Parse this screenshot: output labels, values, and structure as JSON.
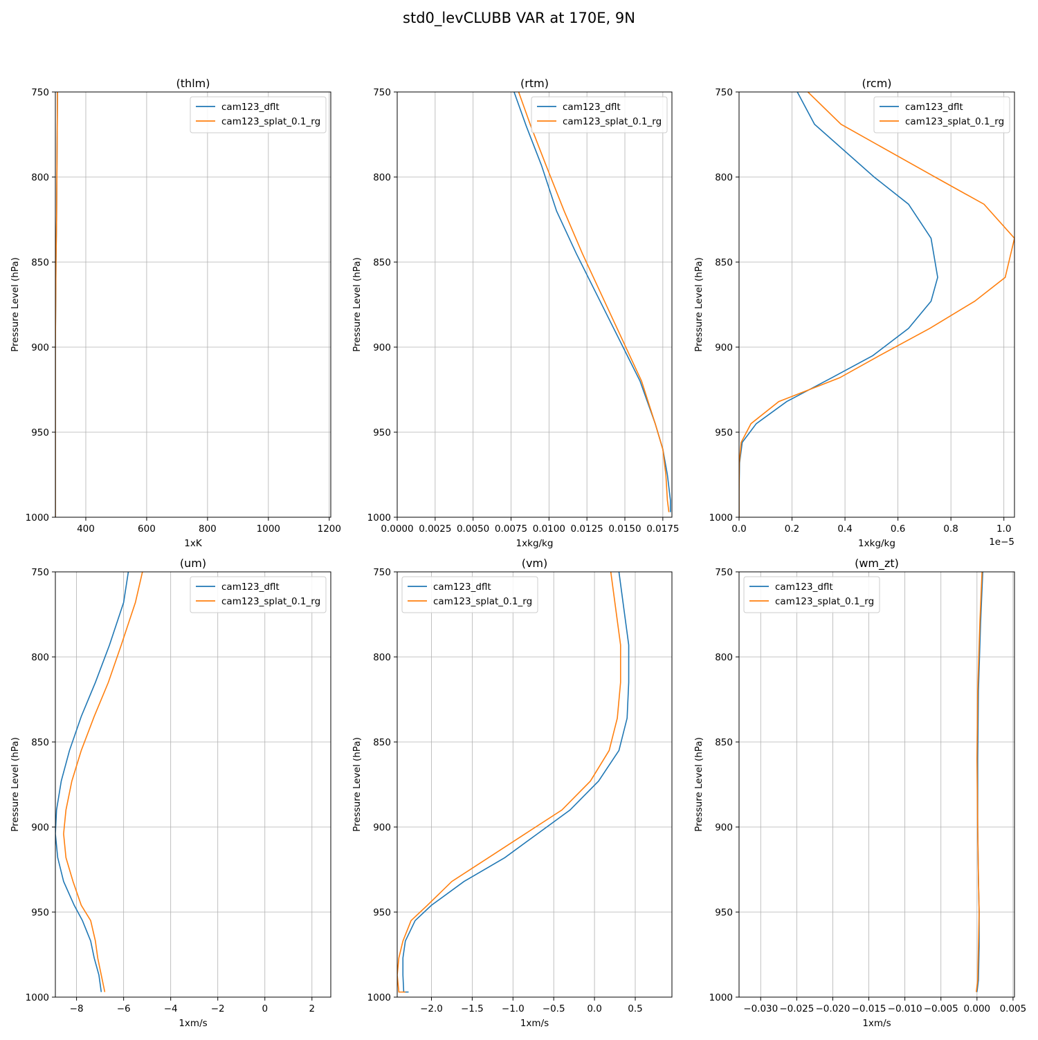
{
  "figure": {
    "suptitle": "std0_levCLUBB VAR at 170E, 9N"
  },
  "colors": {
    "series_0": "#1f77b4",
    "series_1": "#ff7f0e",
    "grid": "#b0b0b0"
  },
  "chart_data": [
    {
      "type": "line",
      "title": "(thlm)",
      "xlabel": "1xK",
      "ylabel": "Pressure Level (hPa)",
      "xlim": [
        300,
        1205
      ],
      "ylim": [
        1000,
        750
      ],
      "y_inverted": true,
      "xticks": [
        400,
        600,
        800,
        1000,
        1200
      ],
      "xtick_labels": [
        "400",
        "600",
        "800",
        "1000",
        "1200"
      ],
      "yticks": [
        750,
        800,
        850,
        900,
        950,
        1000
      ],
      "ytick_labels": [
        "750",
        "800",
        "850",
        "900",
        "950",
        "1000"
      ],
      "offset_text": "",
      "grid": true,
      "legend": "upper right",
      "series": [
        {
          "name": "cam123_dflt",
          "x": [
            307,
            306,
            305,
            304,
            302,
            301,
            300,
            300
          ],
          "y": [
            750,
            775,
            800,
            825,
            850,
            875,
            900,
            1000
          ]
        },
        {
          "name": "cam123_splat_0.1_rg",
          "x": [
            307,
            306,
            305,
            304,
            302,
            301,
            300,
            300
          ],
          "y": [
            750,
            775,
            800,
            825,
            850,
            875,
            900,
            1000
          ]
        }
      ]
    },
    {
      "type": "line",
      "title": "(rtm)",
      "xlabel": "1xkg/kg",
      "ylabel": "Pressure Level (hPa)",
      "xlim": [
        0,
        0.0181
      ],
      "ylim": [
        1000,
        750
      ],
      "y_inverted": true,
      "xticks": [
        0,
        0.0025,
        0.005,
        0.0075,
        0.01,
        0.0125,
        0.015,
        0.0175
      ],
      "xtick_labels": [
        "0.0000",
        "0.0025",
        "0.0050",
        "0.0075",
        "0.0100",
        "0.0125",
        "0.0150",
        "0.0175"
      ],
      "yticks": [
        750,
        800,
        850,
        900,
        950,
        1000
      ],
      "ytick_labels": [
        "750",
        "800",
        "850",
        "900",
        "950",
        "1000"
      ],
      "offset_text": "",
      "grid": true,
      "legend": "upper right",
      "series": [
        {
          "name": "cam123_dflt",
          "x": [
            0.0077,
            0.0085,
            0.0095,
            0.0105,
            0.0118,
            0.0132,
            0.0146,
            0.016,
            0.017,
            0.0175,
            0.0178,
            0.018,
            0.018
          ],
          "y": [
            750,
            770,
            793,
            820,
            845,
            870,
            895,
            920,
            945,
            960,
            975,
            990,
            997
          ]
        },
        {
          "name": "cam123_splat_0.1_rg",
          "x": [
            0.008,
            0.0088,
            0.0098,
            0.011,
            0.0122,
            0.0135,
            0.0148,
            0.0161,
            0.017,
            0.0175,
            0.0177,
            0.0178,
            0.0179
          ],
          "y": [
            750,
            770,
            793,
            820,
            845,
            870,
            895,
            920,
            945,
            960,
            975,
            990,
            997
          ]
        }
      ]
    },
    {
      "type": "line",
      "title": "(rcm)",
      "xlabel": "1xkg/kg",
      "ylabel": "Pressure Level (hPa)",
      "xlim": [
        0,
        1.04e-05
      ],
      "ylim": [
        1000,
        750
      ],
      "y_inverted": true,
      "xticks": [
        0,
        2e-06,
        4e-06,
        6e-06,
        8e-06,
        1e-05
      ],
      "xtick_labels": [
        "0.0",
        "0.2",
        "0.4",
        "0.6",
        "0.8",
        "1.0"
      ],
      "yticks": [
        750,
        800,
        850,
        900,
        950,
        1000
      ],
      "ytick_labels": [
        "750",
        "800",
        "850",
        "900",
        "950",
        "1000"
      ],
      "offset_text": "1e−5",
      "grid": true,
      "legend": "upper right",
      "series": [
        {
          "name": "cam123_dflt",
          "x": [
            2.2e-06,
            2.85e-06,
            5.1e-06,
            6.4e-06,
            7.25e-06,
            7.5e-06,
            7.25e-06,
            6.4e-06,
            5.05e-06,
            3.5e-06,
            1.8e-06,
            6.5e-07,
            1.2e-07,
            2e-08,
            0,
            0
          ],
          "y": [
            750,
            769,
            800,
            816,
            836,
            859,
            873,
            889,
            905,
            918,
            932,
            945,
            956,
            968,
            985,
            1000
          ]
        },
        {
          "name": "cam123_splat_0.1_rg",
          "x": [
            2.6e-06,
            3.85e-06,
            7.4e-06,
            9.25e-06,
            1.04e-05,
            1.005e-05,
            8.9e-06,
            7.2e-06,
            5.3e-06,
            3.8e-06,
            1.5e-06,
            4.5e-07,
            8e-08,
            1e-08,
            0,
            0
          ],
          "y": [
            750,
            769,
            800,
            816,
            836,
            859,
            873,
            889,
            905,
            918,
            932,
            945,
            956,
            968,
            985,
            1000
          ]
        }
      ]
    },
    {
      "type": "line",
      "title": "(um)",
      "xlabel": "1xm/s",
      "ylabel": "Pressure Level (hPa)",
      "xlim": [
        -8.9,
        2.8
      ],
      "ylim": [
        1000,
        750
      ],
      "y_inverted": true,
      "xticks": [
        -8,
        -6,
        -4,
        -2,
        0,
        2
      ],
      "xtick_labels": [
        "−8",
        "−6",
        "−4",
        "−2",
        "0",
        "2"
      ],
      "yticks": [
        750,
        800,
        850,
        900,
        950,
        1000
      ],
      "ytick_labels": [
        "750",
        "800",
        "850",
        "900",
        "950",
        "1000"
      ],
      "offset_text": "",
      "grid": true,
      "legend": "upper right",
      "series": [
        {
          "name": "cam123_dflt",
          "x": [
            -5.8,
            -6.0,
            -6.6,
            -7.2,
            -7.8,
            -8.3,
            -8.65,
            -8.85,
            -8.9,
            -8.8,
            -8.55,
            -8.1,
            -7.75,
            -7.4,
            -7.25,
            -7.05,
            -6.95
          ],
          "y": [
            750,
            768,
            793,
            815,
            835,
            855,
            873,
            890,
            904,
            918,
            932,
            946,
            955,
            967,
            977,
            987,
            997
          ]
        },
        {
          "name": "cam123_splat_0.1_rg",
          "x": [
            -5.2,
            -5.5,
            -6.1,
            -6.65,
            -7.25,
            -7.8,
            -8.2,
            -8.45,
            -8.55,
            -8.45,
            -8.15,
            -7.8,
            -7.4,
            -7.2,
            -7.1,
            -6.95,
            -6.8
          ],
          "y": [
            750,
            768,
            793,
            815,
            835,
            855,
            873,
            890,
            904,
            918,
            932,
            946,
            955,
            967,
            977,
            987,
            997
          ]
        }
      ]
    },
    {
      "type": "line",
      "title": "(vm)",
      "xlabel": "1xm/s",
      "ylabel": "Pressure Level (hPa)",
      "xlim": [
        -2.42,
        0.95
      ],
      "ylim": [
        1000,
        750
      ],
      "y_inverted": true,
      "xticks": [
        -2.0,
        -1.5,
        -1.0,
        -0.5,
        0.0,
        0.5
      ],
      "xtick_labels": [
        "−2.0",
        "−1.5",
        "−1.0",
        "−0.5",
        "0.0",
        "0.5"
      ],
      "yticks": [
        750,
        800,
        850,
        900,
        950,
        1000
      ],
      "ytick_labels": [
        "750",
        "800",
        "850",
        "900",
        "950",
        "1000"
      ],
      "offset_text": "",
      "grid": true,
      "legend": "upper left",
      "series": [
        {
          "name": "cam123_dflt",
          "x": [
            0.3,
            0.35,
            0.42,
            0.42,
            0.4,
            0.3,
            0.05,
            -0.3,
            -0.7,
            -1.1,
            -1.6,
            -2.0,
            -2.2,
            -2.32,
            -2.35,
            -2.35,
            -2.34,
            -2.28
          ],
          "y": [
            750,
            768,
            793,
            815,
            836,
            855,
            873,
            890,
            904,
            918,
            932,
            946,
            955,
            967,
            977,
            987,
            997,
            997
          ]
        },
        {
          "name": "cam123_splat_0.1_rg",
          "x": [
            0.2,
            0.25,
            0.32,
            0.32,
            0.28,
            0.18,
            -0.05,
            -0.4,
            -0.85,
            -1.3,
            -1.75,
            -2.05,
            -2.25,
            -2.35,
            -2.4,
            -2.42,
            -2.4,
            -2.32
          ],
          "y": [
            750,
            768,
            793,
            815,
            836,
            855,
            873,
            890,
            904,
            918,
            932,
            946,
            955,
            967,
            977,
            987,
            997,
            997
          ]
        }
      ]
    },
    {
      "type": "line",
      "title": "(wm_zt)",
      "xlabel": "1xm/s",
      "ylabel": "Pressure Level (hPa)",
      "xlim": [
        -0.033,
        0.0052
      ],
      "ylim": [
        1000,
        750
      ],
      "y_inverted": true,
      "xticks": [
        -0.03,
        -0.025,
        -0.02,
        -0.015,
        -0.01,
        -0.005,
        0.0,
        0.005
      ],
      "xtick_labels": [
        "−0.030",
        "−0.025",
        "−0.020",
        "−0.015",
        "−0.010",
        "−0.005",
        "0.000",
        "0.005"
      ],
      "yticks": [
        750,
        800,
        850,
        900,
        950,
        1000
      ],
      "ytick_labels": [
        "750",
        "800",
        "850",
        "900",
        "950",
        "1000"
      ],
      "offset_text": "",
      "grid": true,
      "legend": "upper left",
      "series": [
        {
          "name": "cam123_dflt",
          "x": [
            0.0008,
            0.0005,
            0.0002,
            0.0001,
            0.0001,
            0.0002,
            0.0003,
            0.0003,
            0.0002,
            0.0
          ],
          "y": [
            750,
            780,
            820,
            860,
            900,
            930,
            950,
            970,
            990,
            997
          ]
        },
        {
          "name": "cam123_splat_0.1_rg",
          "x": [
            0.0007,
            0.0004,
            0.0001,
            0.0,
            0.0001,
            0.0002,
            0.0003,
            0.0002,
            0.0001,
            -0.0001
          ],
          "y": [
            750,
            780,
            820,
            860,
            900,
            930,
            950,
            970,
            990,
            997
          ]
        }
      ]
    }
  ]
}
